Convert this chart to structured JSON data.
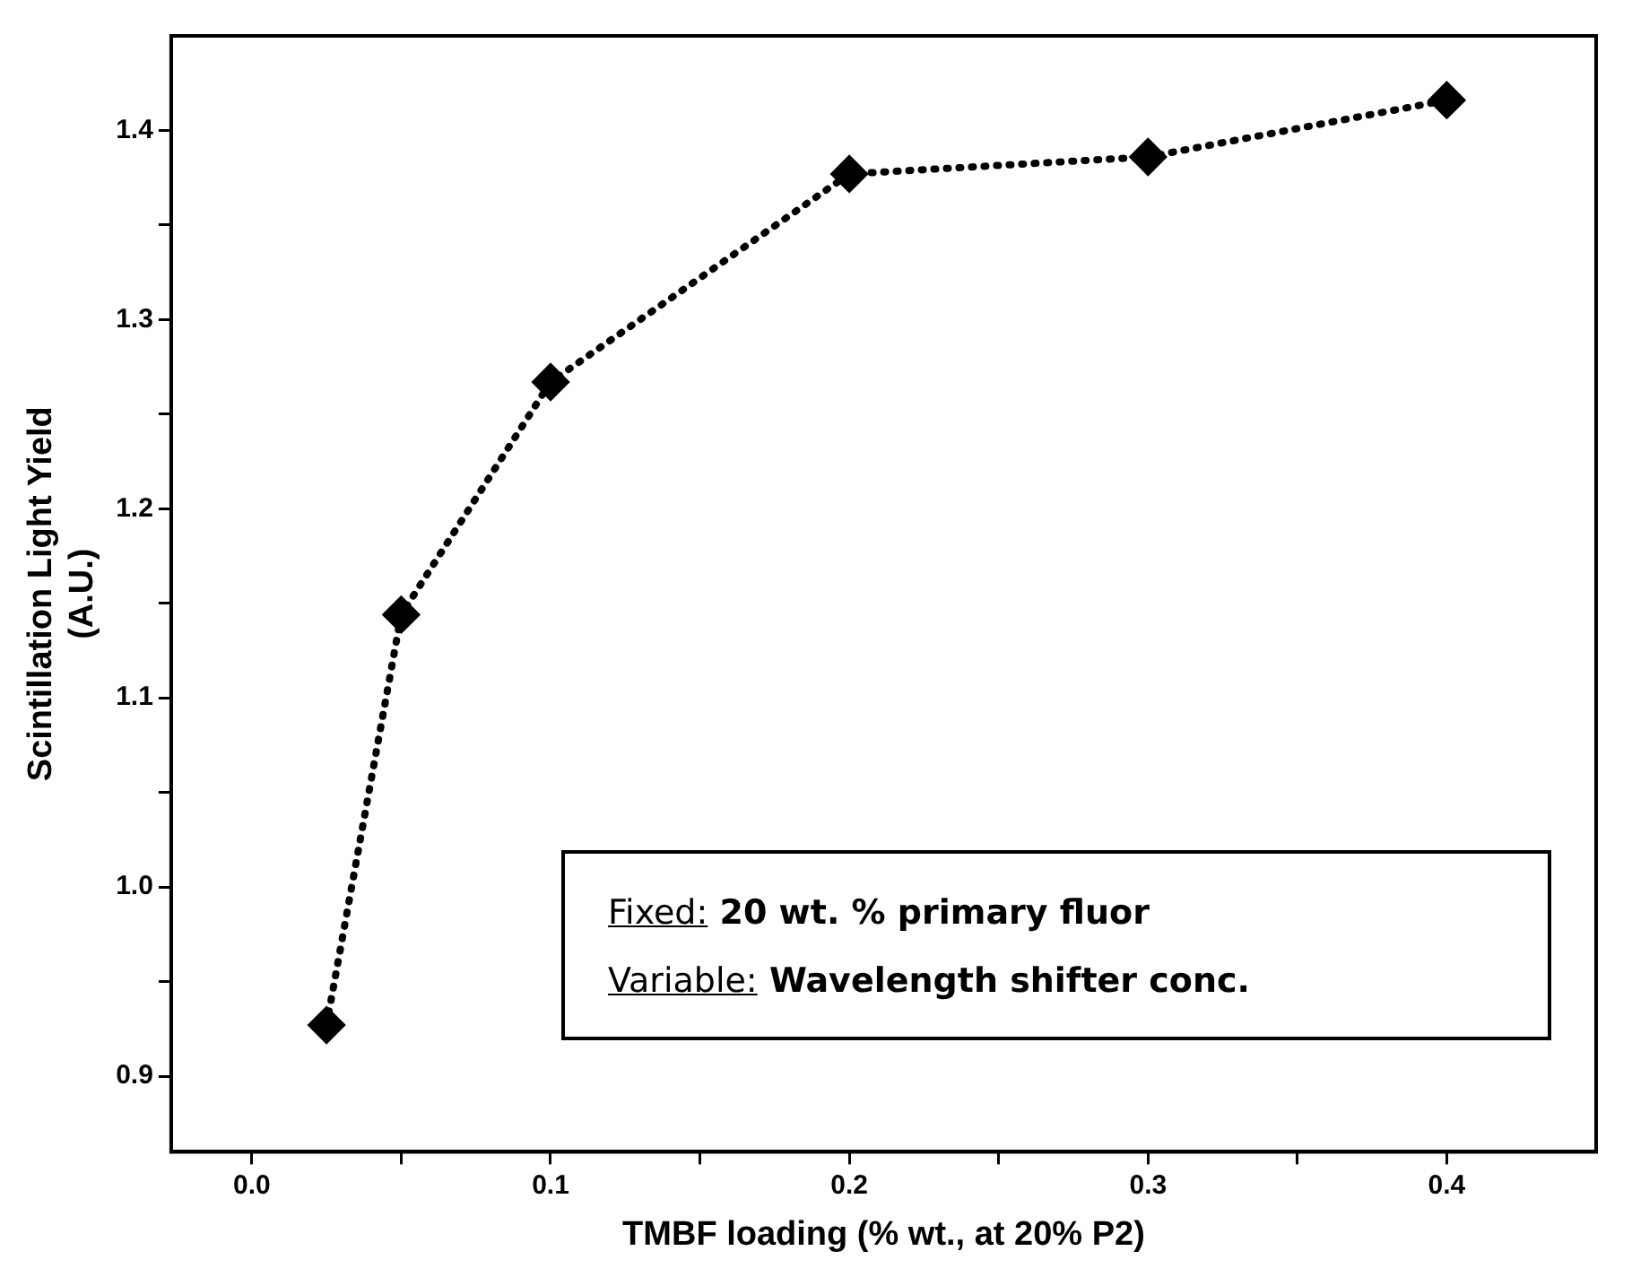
{
  "chart_data": {
    "type": "line",
    "xlabel": "TMBF loading (% wt., at 20% P2)",
    "ylabel": "Scintillation Light Yield\n(A.U.)",
    "x": [
      0.025,
      0.05,
      0.1,
      0.2,
      0.3,
      0.4
    ],
    "series": [
      {
        "color": "#000000",
        "values": [
          0.927,
          1.144,
          1.267,
          1.377,
          1.386,
          1.416
        ]
      }
    ],
    "xlim": [
      -0.027,
      0.45
    ],
    "xticks": [
      {
        "value": 0,
        "label": "0.0"
      },
      {
        "value": 0.05,
        "label": null
      },
      0.1,
      {
        "value": 0.15,
        "label": null
      },
      0.2,
      {
        "value": 0.25,
        "label": null
      },
      0.3,
      {
        "value": 0.35,
        "label": null
      },
      0.4
    ],
    "ylim": [
      0.86,
      1.45
    ],
    "yticks": [
      0.9,
      {
        "value": 0.95,
        "label": null
      },
      {
        "value": 1,
        "label": "1.0"
      },
      {
        "value": 1.05,
        "label": null
      },
      1.1,
      {
        "value": 1.15,
        "label": null
      },
      1.2,
      {
        "value": 1.25,
        "label": null
      },
      1.3,
      {
        "value": 1.35,
        "label": null
      },
      1.4
    ],
    "marker": "diamond",
    "line_style": "dotted",
    "grid": false,
    "legend": false,
    "annotations": [
      "Fixed: 20 wt. % primary fluor",
      "Variable: Wavelength shifter conc."
    ]
  }
}
